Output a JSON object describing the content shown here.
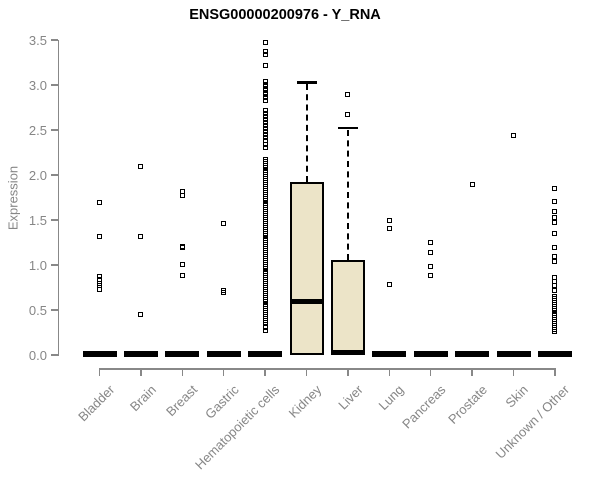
{
  "title": "ENSG00000200976 - Y_RNA",
  "colors": {
    "background": "#ffffff",
    "title_text": "#000000",
    "axis_line": "#888888",
    "axis_text": "#868686",
    "box_fill": "#ece4c8",
    "box_stroke": "#000000",
    "median_line": "#000000",
    "outlier_stroke": "#000000"
  },
  "chart_data": {
    "type": "boxplot",
    "title": "ENSG00000200976 - Y_RNA",
    "xlabel": "",
    "ylabel": "Expression",
    "ylim": [
      0,
      3.5
    ],
    "grid": false,
    "y_ticks": [
      {
        "value": 0.0,
        "label": "0.0"
      },
      {
        "value": 0.5,
        "label": "0.5"
      },
      {
        "value": 1.0,
        "label": "1.0"
      },
      {
        "value": 1.5,
        "label": "1.5"
      },
      {
        "value": 2.0,
        "label": "2.0"
      },
      {
        "value": 2.5,
        "label": "2.5"
      },
      {
        "value": 3.0,
        "label": "3.0"
      },
      {
        "value": 3.5,
        "label": "3.5"
      }
    ],
    "categories": [
      "Bladder",
      "Brain",
      "Breast",
      "Gastric",
      "Hematopoietic cells",
      "Kidney",
      "Liver",
      "Lung",
      "Pancreas",
      "Prostate",
      "Skin",
      "Unknown / Other"
    ],
    "series": [
      {
        "label": "Bladder",
        "flat": true,
        "box": {
          "q1": 0,
          "median": 0,
          "q3": 0,
          "whisker_low": 0,
          "whisker_high": 0
        },
        "outliers": [
          1.7,
          1.32,
          0.87,
          0.84,
          0.8,
          0.77,
          0.73
        ],
        "outlier_bands": []
      },
      {
        "label": "Brain",
        "flat": true,
        "box": {
          "q1": 0,
          "median": 0,
          "q3": 0,
          "whisker_low": 0,
          "whisker_high": 0
        },
        "outliers": [
          2.1,
          1.32,
          0.45
        ],
        "outlier_bands": []
      },
      {
        "label": "Breast",
        "flat": true,
        "box": {
          "q1": 0,
          "median": 0,
          "q3": 0,
          "whisker_low": 0,
          "whisker_high": 0
        },
        "outliers": [
          1.82,
          1.77,
          1.21,
          1.19,
          1.01,
          0.88
        ],
        "outlier_bands": []
      },
      {
        "label": "Gastric",
        "flat": true,
        "box": {
          "q1": 0,
          "median": 0,
          "q3": 0,
          "whisker_low": 0,
          "whisker_high": 0
        },
        "outliers": [
          1.46,
          0.72,
          0.7
        ],
        "outlier_bands": []
      },
      {
        "label": "Hematopoietic cells",
        "flat": true,
        "box": {
          "q1": 0,
          "median": 0,
          "q3": 0,
          "whisker_low": 0,
          "whisker_high": 0
        },
        "outliers": [
          3.47,
          3.37,
          3.34,
          3.22,
          0.31,
          0.27
        ],
        "outlier_bands": [
          [
            3.04,
            2.83,
            8
          ],
          [
            2.72,
            2.31,
            13
          ],
          [
            2.17,
            0.36,
            80
          ]
        ]
      },
      {
        "label": "Kidney",
        "flat": false,
        "box": {
          "q1": 0.0,
          "median": 0.6,
          "q3": 1.92,
          "whisker_low": 0.0,
          "whisker_high": 3.03
        },
        "outliers": [],
        "outlier_bands": []
      },
      {
        "label": "Liver",
        "flat": false,
        "box": {
          "q1": 0.0,
          "median": 0.03,
          "q3": 1.06,
          "whisker_low": 0.0,
          "whisker_high": 2.52
        },
        "outliers": [
          2.89,
          2.67
        ],
        "outlier_bands": []
      },
      {
        "label": "Lung",
        "flat": true,
        "box": {
          "q1": 0,
          "median": 0,
          "q3": 0,
          "whisker_low": 0,
          "whisker_high": 0
        },
        "outliers": [
          1.5,
          1.41,
          0.78
        ],
        "outlier_bands": []
      },
      {
        "label": "Pancreas",
        "flat": true,
        "box": {
          "q1": 0,
          "median": 0,
          "q3": 0,
          "whisker_low": 0,
          "whisker_high": 0
        },
        "outliers": [
          1.25,
          1.14,
          0.98,
          0.88
        ],
        "outlier_bands": []
      },
      {
        "label": "Prostate",
        "flat": true,
        "box": {
          "q1": 0,
          "median": 0,
          "q3": 0,
          "whisker_low": 0,
          "whisker_high": 0
        },
        "outliers": [
          1.9
        ],
        "outlier_bands": []
      },
      {
        "label": "Skin",
        "flat": true,
        "box": {
          "q1": 0,
          "median": 0,
          "q3": 0,
          "whisker_low": 0,
          "whisker_high": 0
        },
        "outliers": [
          2.44
        ],
        "outlier_bands": []
      },
      {
        "label": "Unknown / Other",
        "flat": true,
        "box": {
          "q1": 0,
          "median": 0,
          "q3": 0,
          "whisker_low": 0,
          "whisker_high": 0
        },
        "outliers": [
          1.85,
          1.71,
          1.59,
          1.53,
          1.47,
          1.35,
          1.19,
          1.1,
          1.04,
          0.86,
          0.82,
          0.77,
          0.72
        ],
        "outlier_bands": [
          [
            0.65,
            0.26,
            18
          ]
        ]
      }
    ]
  }
}
